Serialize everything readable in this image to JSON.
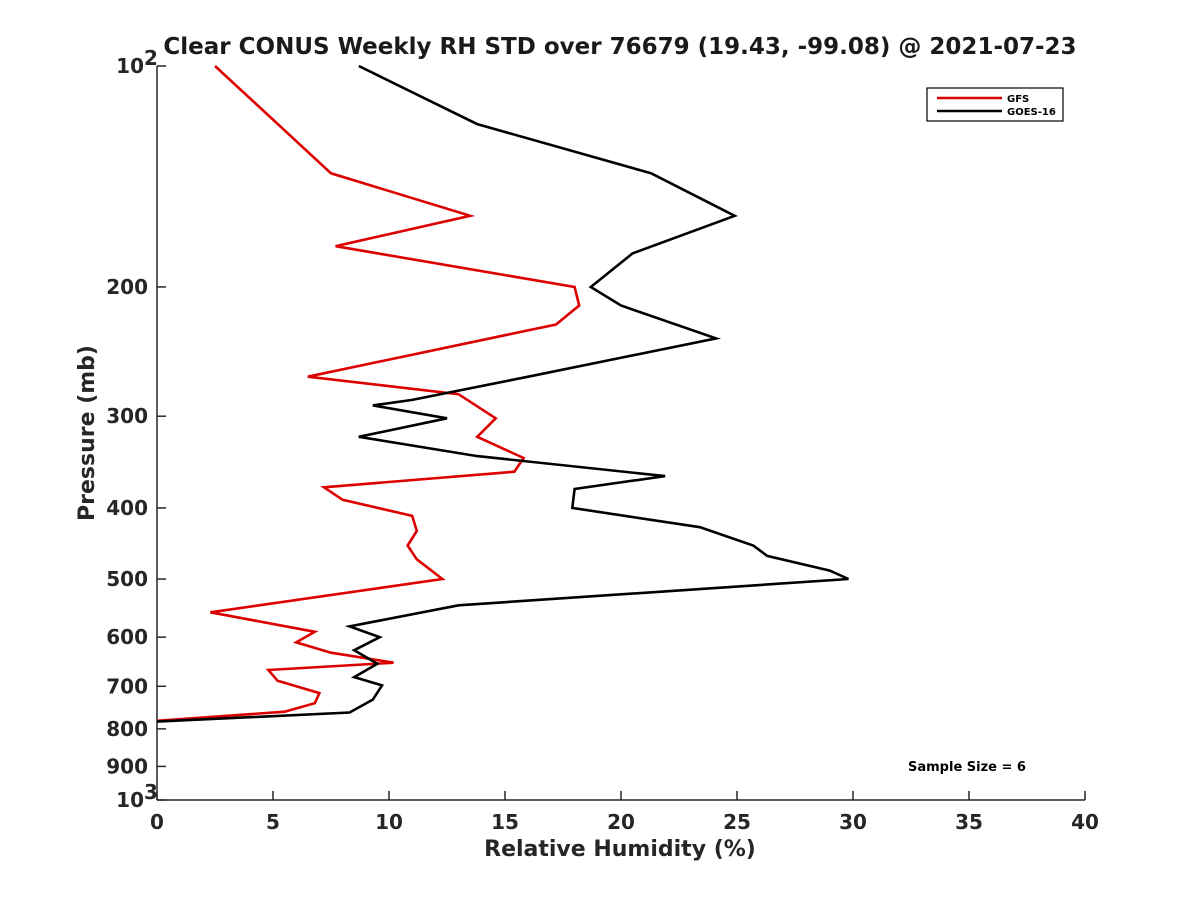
{
  "chart_data": {
    "type": "line",
    "title": "Clear CONUS Weekly RH STD over 76679 (19.43, -99.08) @ 2021-07-23",
    "xlabel": "Relative Humidity (%)",
    "ylabel": "Pressure (mb)",
    "xlim": [
      0,
      40
    ],
    "ylim": [
      100,
      1000
    ],
    "y_scale": "log",
    "y_reversed": true,
    "grid": false,
    "legend_position": "top-right",
    "x_ticks": [
      0,
      5,
      10,
      15,
      20,
      25,
      30,
      35,
      40
    ],
    "y_ticks": [
      {
        "value": 100,
        "label": "10",
        "sup": "2"
      },
      {
        "value": 200,
        "label": "200",
        "sup": ""
      },
      {
        "value": 300,
        "label": "300",
        "sup": ""
      },
      {
        "value": 400,
        "label": "400",
        "sup": ""
      },
      {
        "value": 500,
        "label": "500",
        "sup": ""
      },
      {
        "value": 600,
        "label": "600",
        "sup": ""
      },
      {
        "value": 700,
        "label": "700",
        "sup": ""
      },
      {
        "value": 800,
        "label": "800",
        "sup": ""
      },
      {
        "value": 900,
        "label": "900",
        "sup": ""
      },
      {
        "value": 1000,
        "label": "10",
        "sup": "3"
      }
    ],
    "annotation": "Sample Size = 6",
    "series": [
      {
        "name": "GFS",
        "color": "#dd0000",
        "points": [
          [
            2.5,
            100
          ],
          [
            7.5,
            140
          ],
          [
            13.5,
            160
          ],
          [
            7.7,
            176
          ],
          [
            18.0,
            200
          ],
          [
            18.2,
            212
          ],
          [
            17.2,
            225
          ],
          [
            6.5,
            265
          ],
          [
            13.0,
            280
          ],
          [
            14.6,
            302
          ],
          [
            13.8,
            320
          ],
          [
            15.8,
            342
          ],
          [
            15.4,
            357
          ],
          [
            7.2,
            375
          ],
          [
            8.0,
            390
          ],
          [
            11.0,
            410
          ],
          [
            11.2,
            430
          ],
          [
            10.8,
            450
          ],
          [
            11.2,
            470
          ],
          [
            12.3,
            500
          ],
          [
            2.3,
            555
          ],
          [
            6.8,
            590
          ],
          [
            6.0,
            610
          ],
          [
            7.5,
            630
          ],
          [
            10.2,
            650
          ],
          [
            4.8,
            665
          ],
          [
            5.2,
            688
          ],
          [
            6.0,
            700
          ],
          [
            7.0,
            715
          ],
          [
            6.8,
            738
          ],
          [
            5.5,
            758
          ],
          [
            0.0,
            780
          ]
        ]
      },
      {
        "name": "GOES-16",
        "color": "#000000",
        "points": [
          [
            8.7,
            100
          ],
          [
            13.8,
            120
          ],
          [
            21.3,
            140
          ],
          [
            24.9,
            160
          ],
          [
            20.5,
            180
          ],
          [
            18.7,
            200
          ],
          [
            20.0,
            212
          ],
          [
            24.1,
            235
          ],
          [
            16.0,
            265
          ],
          [
            11.0,
            285
          ],
          [
            9.3,
            290
          ],
          [
            12.5,
            302
          ],
          [
            8.7,
            320
          ],
          [
            13.8,
            340
          ],
          [
            21.9,
            362
          ],
          [
            18.0,
            377
          ],
          [
            17.9,
            400
          ],
          [
            23.4,
            425
          ],
          [
            25.7,
            450
          ],
          [
            26.3,
            465
          ],
          [
            29.0,
            487
          ],
          [
            29.8,
            500
          ],
          [
            13.0,
            543
          ],
          [
            8.3,
            580
          ],
          [
            9.6,
            600
          ],
          [
            8.5,
            625
          ],
          [
            9.5,
            652
          ],
          [
            8.5,
            680
          ],
          [
            9.7,
            698
          ],
          [
            9.3,
            730
          ],
          [
            8.3,
            760
          ],
          [
            0.0,
            782
          ]
        ]
      }
    ]
  }
}
